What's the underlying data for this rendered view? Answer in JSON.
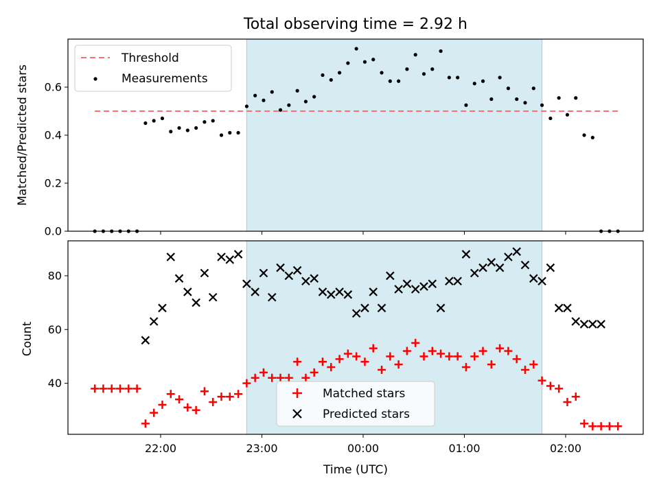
{
  "chart_data": [
    {
      "type": "scatter",
      "title": "Total observing time = 2.92 h",
      "ylabel": "Matched/Predicted stars",
      "xlabel": "",
      "ylim": [
        0,
        0.8
      ],
      "yticks": [
        "0.0",
        "0.2",
        "0.4",
        "0.6"
      ],
      "legend_position": "top-left",
      "observing_window": {
        "start": "22:51",
        "end": "01:46"
      },
      "threshold": {
        "name": "Threshold",
        "value": 0.5,
        "color": "#ff6e6e",
        "style": "dashed"
      },
      "series": [
        {
          "name": "Measurements",
          "color": "#000000",
          "x": [
            "21:21",
            "21:26",
            "21:31",
            "21:36",
            "21:41",
            "21:46",
            "21:51",
            "21:56",
            "22:01",
            "22:06",
            "22:11",
            "22:16",
            "22:21",
            "22:26",
            "22:31",
            "22:36",
            "22:41",
            "22:46",
            "22:51",
            "22:56",
            "23:01",
            "23:06",
            "23:11",
            "23:16",
            "23:21",
            "23:26",
            "23:31",
            "23:36",
            "23:41",
            "23:46",
            "23:51",
            "23:56",
            "00:01",
            "00:06",
            "00:11",
            "00:16",
            "00:21",
            "00:26",
            "00:31",
            "00:36",
            "00:41",
            "00:46",
            "00:51",
            "00:56",
            "01:01",
            "01:06",
            "01:11",
            "01:16",
            "01:21",
            "01:26",
            "01:31",
            "01:36",
            "01:41",
            "01:46",
            "01:51",
            "01:56",
            "02:01",
            "02:06",
            "02:11",
            "02:16",
            "02:21",
            "02:26",
            "02:31"
          ],
          "y": [
            0,
            0,
            0,
            0,
            0,
            0,
            0.45,
            0.46,
            0.47,
            0.415,
            0.43,
            0.42,
            0.43,
            0.455,
            0.46,
            0.4,
            0.41,
            0.41,
            0.52,
            0.565,
            0.545,
            0.58,
            0.505,
            0.525,
            0.585,
            0.54,
            0.56,
            0.65,
            0.63,
            0.66,
            0.7,
            0.76,
            0.705,
            0.715,
            0.66,
            0.625,
            0.625,
            0.675,
            0.735,
            0.655,
            0.675,
            0.75,
            0.64,
            0.64,
            0.525,
            0.615,
            0.625,
            0.55,
            0.64,
            0.595,
            0.55,
            0.535,
            0.595,
            0.525,
            0.47,
            0.555,
            0.485,
            0.555,
            0.4,
            0.39,
            0,
            0,
            0
          ]
        }
      ]
    },
    {
      "type": "scatter",
      "title": "",
      "ylabel": "Count",
      "xlabel": "Time (UTC)",
      "ylim": [
        21,
        93
      ],
      "yticks": [
        "40",
        "60",
        "80"
      ],
      "xticks": [
        "22:00",
        "23:00",
        "00:00",
        "01:00",
        "02:00"
      ],
      "legend_position": "bottom-center",
      "observing_window": {
        "start": "22:51",
        "end": "01:46"
      },
      "series": [
        {
          "name": "Matched stars",
          "color": "#ff0000",
          "marker": "plus",
          "x": [
            "21:21",
            "21:26",
            "21:31",
            "21:36",
            "21:41",
            "21:46",
            "21:51",
            "21:56",
            "22:01",
            "22:06",
            "22:11",
            "22:16",
            "22:21",
            "22:26",
            "22:31",
            "22:36",
            "22:41",
            "22:46",
            "22:51",
            "22:56",
            "23:01",
            "23:06",
            "23:11",
            "23:16",
            "23:21",
            "23:26",
            "23:31",
            "23:36",
            "23:41",
            "23:46",
            "23:51",
            "23:56",
            "00:01",
            "00:06",
            "00:11",
            "00:16",
            "00:21",
            "00:26",
            "00:31",
            "00:36",
            "00:41",
            "00:46",
            "00:51",
            "00:56",
            "01:01",
            "01:06",
            "01:11",
            "01:16",
            "01:21",
            "01:26",
            "01:31",
            "01:36",
            "01:41",
            "01:46",
            "01:51",
            "01:56",
            "02:01",
            "02:06",
            "02:11",
            "02:16",
            "02:21",
            "02:26",
            "02:31"
          ],
          "y": [
            38,
            38,
            38,
            38,
            38,
            38,
            25,
            29,
            32,
            36,
            34,
            31,
            30,
            37,
            33,
            35,
            35,
            36,
            40,
            42,
            44,
            42,
            42,
            42,
            48,
            42,
            44,
            48,
            46,
            49,
            51,
            50,
            48,
            53,
            45,
            50,
            47,
            52,
            55,
            50,
            52,
            51,
            50,
            50,
            46,
            50,
            52,
            47,
            53,
            52,
            49,
            45,
            47,
            41,
            39,
            38,
            33,
            35,
            25,
            24,
            24,
            24,
            24
          ]
        },
        {
          "name": "Predicted stars",
          "color": "#000000",
          "marker": "x",
          "x": [
            "21:51",
            "21:56",
            "22:01",
            "22:06",
            "22:11",
            "22:16",
            "22:21",
            "22:26",
            "22:31",
            "22:36",
            "22:41",
            "22:46",
            "22:51",
            "22:56",
            "23:01",
            "23:06",
            "23:11",
            "23:16",
            "23:21",
            "23:26",
            "23:31",
            "23:36",
            "23:41",
            "23:46",
            "23:51",
            "23:56",
            "00:01",
            "00:06",
            "00:11",
            "00:16",
            "00:21",
            "00:26",
            "00:31",
            "00:36",
            "00:41",
            "00:46",
            "00:51",
            "00:56",
            "01:01",
            "01:06",
            "01:11",
            "01:16",
            "01:21",
            "01:26",
            "01:31",
            "01:36",
            "01:41",
            "01:46",
            "01:51",
            "01:56",
            "02:01",
            "02:06",
            "02:11",
            "02:16",
            "02:21"
          ],
          "y": [
            56,
            63,
            68,
            87,
            79,
            74,
            70,
            81,
            72,
            87,
            86,
            88,
            77,
            74,
            81,
            72,
            83,
            80,
            82,
            78,
            79,
            74,
            73,
            74,
            73,
            66,
            68,
            74,
            68,
            80,
            75,
            77,
            75,
            76,
            77,
            68,
            78,
            78,
            88,
            81,
            83,
            85,
            83,
            87,
            89,
            84,
            79,
            78,
            83,
            68,
            68,
            63,
            62,
            62,
            62
          ]
        }
      ]
    }
  ]
}
